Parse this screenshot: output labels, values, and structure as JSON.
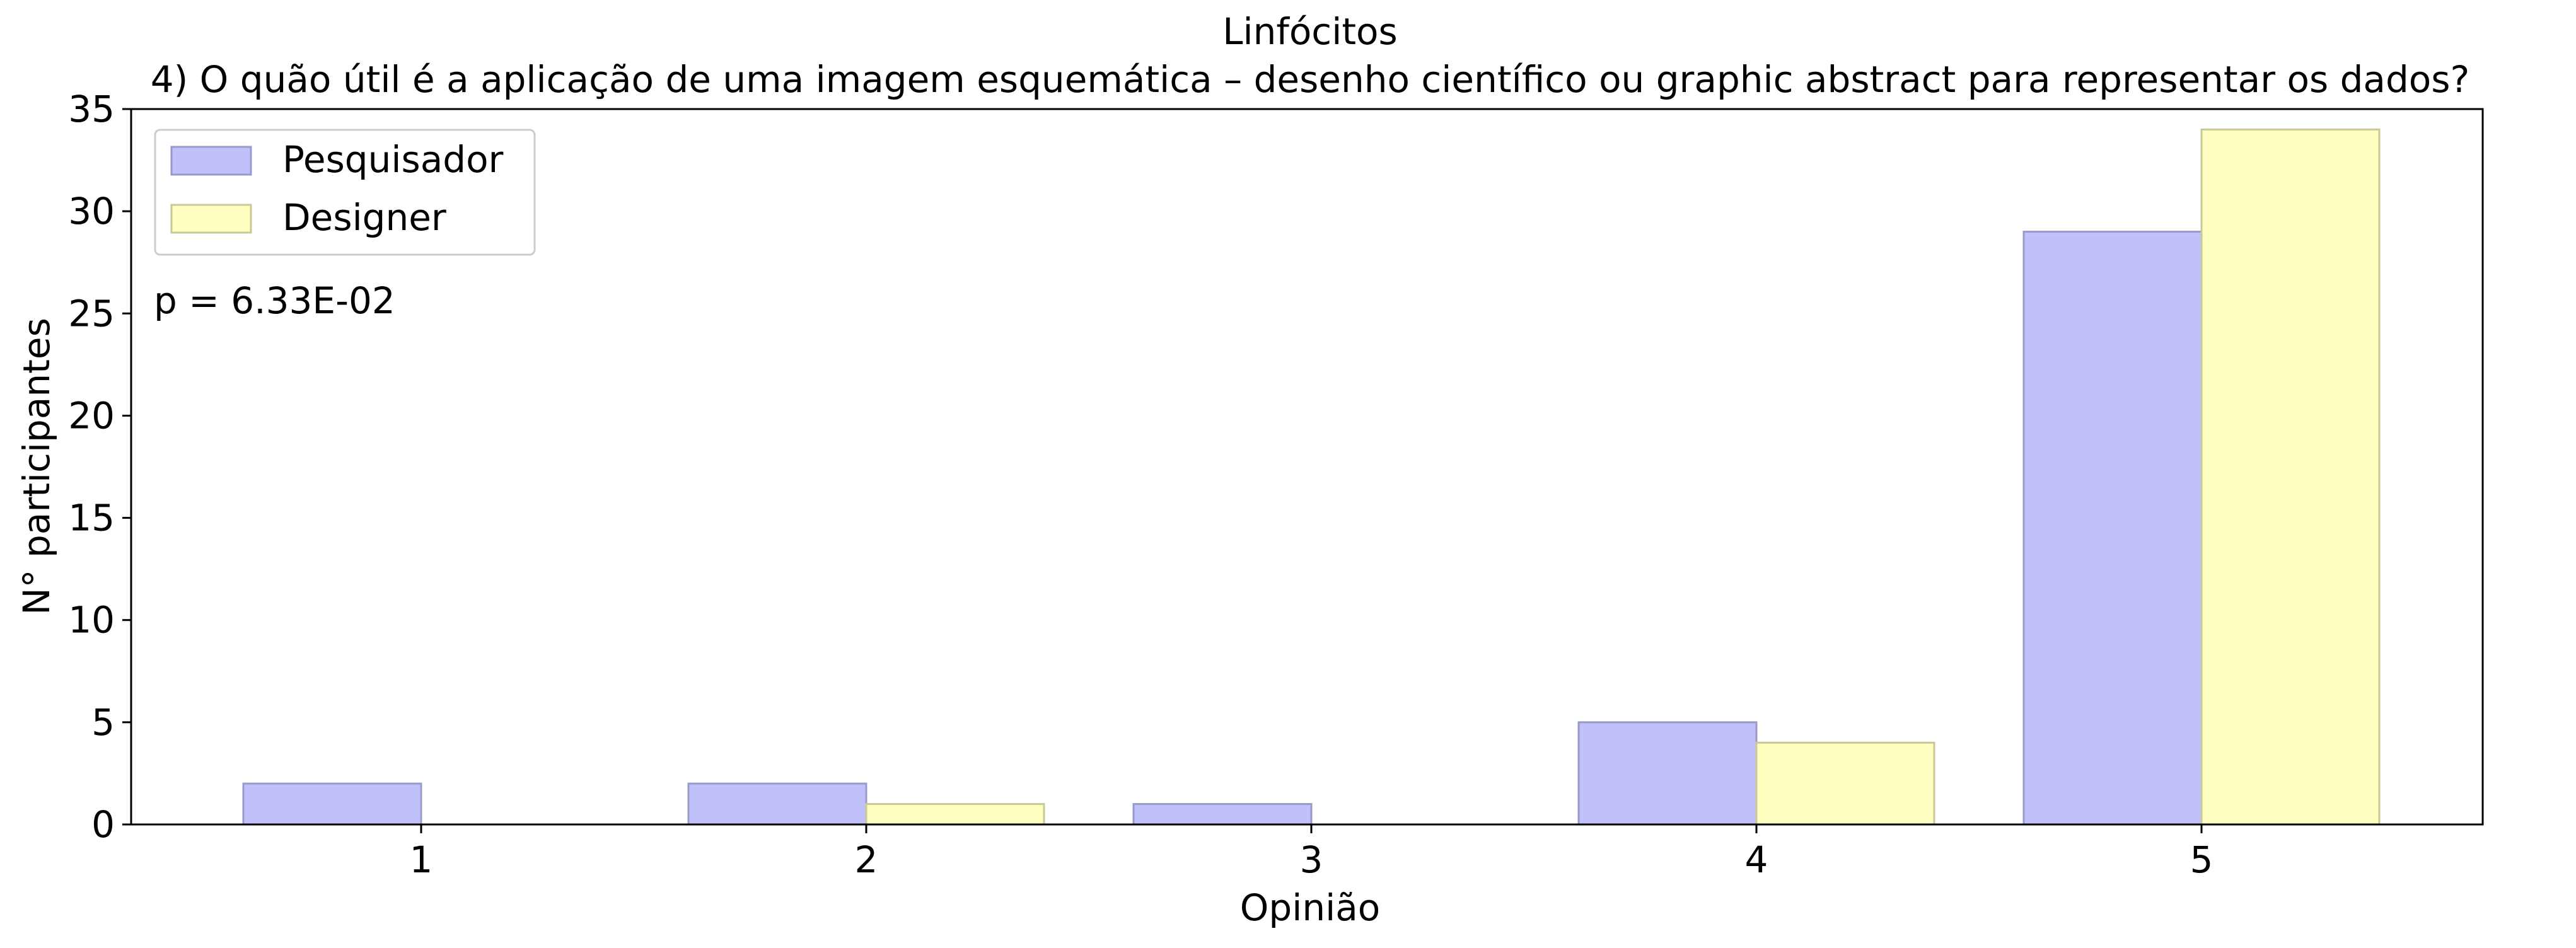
{
  "chart_data": {
    "type": "bar",
    "title": "Linfócitos",
    "subtitle": "4) O quão útil é a aplicação de uma imagem esquemática – desenho científico ou graphic abstract para representar os dados?",
    "xlabel": "Opinião",
    "ylabel": "N° participantes",
    "categories": [
      "1",
      "2",
      "3",
      "4",
      "5"
    ],
    "series": [
      {
        "name": "Pesquisador",
        "values": [
          2,
          2,
          1,
          5,
          29
        ],
        "color": "#c0c0fa",
        "edge": "#9a9ac8"
      },
      {
        "name": "Designer",
        "values": [
          0,
          1,
          0,
          4,
          34
        ],
        "color": "#ffffc0",
        "edge": "#c8c898"
      }
    ],
    "ylim": [
      0,
      35
    ],
    "yticks": [
      0,
      5,
      10,
      15,
      20,
      25,
      30,
      35
    ],
    "grid": false,
    "legend": "top-left",
    "annotation": "p = 6.33E-02"
  }
}
